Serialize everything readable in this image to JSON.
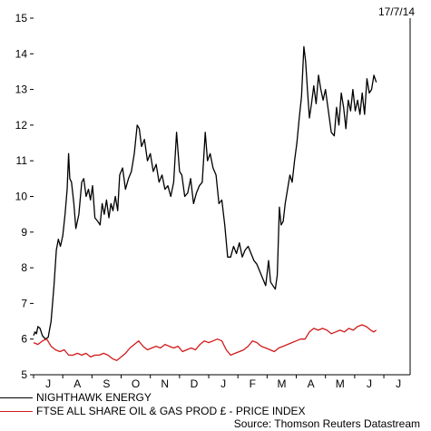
{
  "date_label": "17/7/14",
  "source": "Source: Thomson Reuters Datastream",
  "legend": [
    {
      "label": "NIGHTHAWK ENERGY",
      "color": "#000000"
    },
    {
      "label": "FTSE ALL SHARE OIL & GAS PROD £ - PRICE INDEX",
      "color": "#d11a1a"
    }
  ],
  "chart_data": {
    "type": "line",
    "title": "",
    "xlabel": "",
    "ylabel": "",
    "ylim": [
      5,
      15
    ],
    "y_ticks": [
      5,
      6,
      7,
      8,
      9,
      10,
      11,
      12,
      13,
      14,
      15
    ],
    "x_ticks": [
      "J",
      "A",
      "S",
      "O",
      "N",
      "D",
      "J",
      "F",
      "M",
      "A",
      "M",
      "J",
      "J"
    ],
    "grid": false,
    "series": [
      {
        "name": "NIGHTHAWK ENERGY",
        "color": "#000000",
        "points": [
          [
            0.0,
            6.1
          ],
          [
            0.05,
            6.2
          ],
          [
            0.1,
            6.15
          ],
          [
            0.15,
            6.35
          ],
          [
            0.22,
            6.3
          ],
          [
            0.3,
            6.1
          ],
          [
            0.4,
            6.0
          ],
          [
            0.5,
            6.05
          ],
          [
            0.6,
            6.5
          ],
          [
            0.7,
            7.5
          ],
          [
            0.78,
            8.5
          ],
          [
            0.85,
            8.8
          ],
          [
            0.92,
            8.6
          ],
          [
            1.0,
            8.9
          ],
          [
            1.08,
            9.5
          ],
          [
            1.15,
            10.2
          ],
          [
            1.2,
            11.2
          ],
          [
            1.24,
            10.5
          ],
          [
            1.3,
            10.4
          ],
          [
            1.38,
            9.8
          ],
          [
            1.45,
            9.1
          ],
          [
            1.55,
            9.5
          ],
          [
            1.65,
            10.4
          ],
          [
            1.72,
            10.5
          ],
          [
            1.8,
            10.0
          ],
          [
            1.88,
            10.2
          ],
          [
            1.95,
            9.9
          ],
          [
            2.02,
            10.3
          ],
          [
            2.1,
            9.4
          ],
          [
            2.2,
            9.3
          ],
          [
            2.28,
            9.2
          ],
          [
            2.35,
            9.8
          ],
          [
            2.42,
            9.5
          ],
          [
            2.5,
            9.9
          ],
          [
            2.58,
            9.4
          ],
          [
            2.65,
            9.8
          ],
          [
            2.72,
            9.6
          ],
          [
            2.8,
            10.0
          ],
          [
            2.88,
            9.6
          ],
          [
            2.95,
            10.6
          ],
          [
            3.05,
            10.8
          ],
          [
            3.15,
            10.2
          ],
          [
            3.25,
            10.5
          ],
          [
            3.35,
            10.7
          ],
          [
            3.45,
            11.2
          ],
          [
            3.55,
            12.0
          ],
          [
            3.62,
            11.9
          ],
          [
            3.7,
            11.4
          ],
          [
            3.8,
            11.6
          ],
          [
            3.9,
            11.0
          ],
          [
            4.0,
            11.2
          ],
          [
            4.1,
            10.7
          ],
          [
            4.2,
            10.9
          ],
          [
            4.3,
            10.4
          ],
          [
            4.4,
            10.6
          ],
          [
            4.5,
            10.2
          ],
          [
            4.6,
            10.3
          ],
          [
            4.7,
            10.0
          ],
          [
            4.8,
            10.4
          ],
          [
            4.9,
            11.8
          ],
          [
            5.0,
            10.7
          ],
          [
            5.08,
            10.6
          ],
          [
            5.18,
            10.0
          ],
          [
            5.28,
            10.1
          ],
          [
            5.38,
            10.5
          ],
          [
            5.48,
            9.8
          ],
          [
            5.58,
            10.1
          ],
          [
            5.68,
            10.3
          ],
          [
            5.78,
            10.4
          ],
          [
            5.88,
            11.8
          ],
          [
            5.96,
            11.0
          ],
          [
            6.05,
            11.2
          ],
          [
            6.15,
            10.8
          ],
          [
            6.25,
            10.6
          ],
          [
            6.35,
            9.8
          ],
          [
            6.45,
            9.9
          ],
          [
            6.55,
            9.2
          ],
          [
            6.65,
            8.3
          ],
          [
            6.75,
            8.3
          ],
          [
            6.85,
            8.6
          ],
          [
            6.95,
            8.4
          ],
          [
            7.05,
            8.7
          ],
          [
            7.15,
            8.3
          ],
          [
            7.25,
            8.5
          ],
          [
            7.35,
            8.6
          ],
          [
            7.45,
            8.4
          ],
          [
            7.55,
            8.2
          ],
          [
            7.65,
            8.1
          ],
          [
            7.75,
            7.9
          ],
          [
            7.85,
            7.7
          ],
          [
            7.95,
            7.5
          ],
          [
            8.05,
            8.2
          ],
          [
            8.12,
            7.6
          ],
          [
            8.2,
            7.5
          ],
          [
            8.28,
            7.4
          ],
          [
            8.35,
            7.8
          ],
          [
            8.42,
            9.7
          ],
          [
            8.48,
            9.2
          ],
          [
            8.55,
            9.3
          ],
          [
            8.62,
            9.8
          ],
          [
            8.7,
            10.2
          ],
          [
            8.78,
            10.6
          ],
          [
            8.86,
            10.4
          ],
          [
            8.94,
            11.0
          ],
          [
            9.02,
            11.5
          ],
          [
            9.1,
            12.2
          ],
          [
            9.18,
            12.8
          ],
          [
            9.26,
            14.2
          ],
          [
            9.32,
            13.8
          ],
          [
            9.38,
            13.0
          ],
          [
            9.45,
            12.2
          ],
          [
            9.52,
            12.6
          ],
          [
            9.6,
            13.1
          ],
          [
            9.68,
            12.6
          ],
          [
            9.76,
            13.4
          ],
          [
            9.84,
            13.0
          ],
          [
            9.92,
            12.7
          ],
          [
            10.0,
            13.0
          ],
          [
            10.1,
            12.4
          ],
          [
            10.2,
            11.8
          ],
          [
            10.3,
            11.7
          ],
          [
            10.38,
            12.5
          ],
          [
            10.46,
            12.0
          ],
          [
            10.54,
            12.9
          ],
          [
            10.62,
            12.5
          ],
          [
            10.7,
            11.9
          ],
          [
            10.78,
            12.7
          ],
          [
            10.86,
            12.4
          ],
          [
            10.94,
            13.0
          ],
          [
            11.02,
            12.4
          ],
          [
            11.1,
            12.7
          ],
          [
            11.18,
            12.3
          ],
          [
            11.26,
            12.9
          ],
          [
            11.34,
            12.3
          ],
          [
            11.42,
            13.3
          ],
          [
            11.5,
            12.9
          ],
          [
            11.58,
            13.0
          ],
          [
            11.66,
            13.4
          ],
          [
            11.74,
            13.2
          ]
        ]
      },
      {
        "name": "FTSE ALL SHARE OIL & GAS PROD £ - PRICE INDEX",
        "color": "#d11a1a",
        "points": [
          [
            0.0,
            5.9
          ],
          [
            0.15,
            5.85
          ],
          [
            0.3,
            5.95
          ],
          [
            0.45,
            6.0
          ],
          [
            0.6,
            5.8
          ],
          [
            0.75,
            5.7
          ],
          [
            0.9,
            5.65
          ],
          [
            1.05,
            5.7
          ],
          [
            1.2,
            5.55
          ],
          [
            1.35,
            5.55
          ],
          [
            1.5,
            5.6
          ],
          [
            1.65,
            5.55
          ],
          [
            1.8,
            5.6
          ],
          [
            1.95,
            5.5
          ],
          [
            2.1,
            5.55
          ],
          [
            2.25,
            5.55
          ],
          [
            2.4,
            5.6
          ],
          [
            2.55,
            5.55
          ],
          [
            2.7,
            5.45
          ],
          [
            2.85,
            5.4
          ],
          [
            3.0,
            5.5
          ],
          [
            3.15,
            5.6
          ],
          [
            3.3,
            5.75
          ],
          [
            3.45,
            5.85
          ],
          [
            3.6,
            5.95
          ],
          [
            3.75,
            5.8
          ],
          [
            3.9,
            5.7
          ],
          [
            4.05,
            5.75
          ],
          [
            4.2,
            5.8
          ],
          [
            4.35,
            5.75
          ],
          [
            4.5,
            5.85
          ],
          [
            4.65,
            5.8
          ],
          [
            4.8,
            5.75
          ],
          [
            4.95,
            5.8
          ],
          [
            5.1,
            5.65
          ],
          [
            5.25,
            5.7
          ],
          [
            5.4,
            5.75
          ],
          [
            5.55,
            5.7
          ],
          [
            5.7,
            5.85
          ],
          [
            5.85,
            5.95
          ],
          [
            6.0,
            5.9
          ],
          [
            6.15,
            5.95
          ],
          [
            6.3,
            6.0
          ],
          [
            6.45,
            5.95
          ],
          [
            6.6,
            5.7
          ],
          [
            6.75,
            5.55
          ],
          [
            6.9,
            5.6
          ],
          [
            7.05,
            5.65
          ],
          [
            7.2,
            5.7
          ],
          [
            7.35,
            5.8
          ],
          [
            7.5,
            5.95
          ],
          [
            7.65,
            5.9
          ],
          [
            7.8,
            5.8
          ],
          [
            7.95,
            5.75
          ],
          [
            8.1,
            5.7
          ],
          [
            8.25,
            5.65
          ],
          [
            8.4,
            5.75
          ],
          [
            8.55,
            5.8
          ],
          [
            8.7,
            5.85
          ],
          [
            8.85,
            5.9
          ],
          [
            9.0,
            5.95
          ],
          [
            9.15,
            6.0
          ],
          [
            9.3,
            6.0
          ],
          [
            9.45,
            6.2
          ],
          [
            9.6,
            6.3
          ],
          [
            9.75,
            6.25
          ],
          [
            9.9,
            6.3
          ],
          [
            10.05,
            6.25
          ],
          [
            10.2,
            6.15
          ],
          [
            10.35,
            6.2
          ],
          [
            10.5,
            6.25
          ],
          [
            10.65,
            6.2
          ],
          [
            10.8,
            6.3
          ],
          [
            10.95,
            6.25
          ],
          [
            11.1,
            6.35
          ],
          [
            11.25,
            6.4
          ],
          [
            11.4,
            6.35
          ],
          [
            11.55,
            6.25
          ],
          [
            11.65,
            6.2
          ],
          [
            11.74,
            6.25
          ]
        ]
      }
    ]
  }
}
